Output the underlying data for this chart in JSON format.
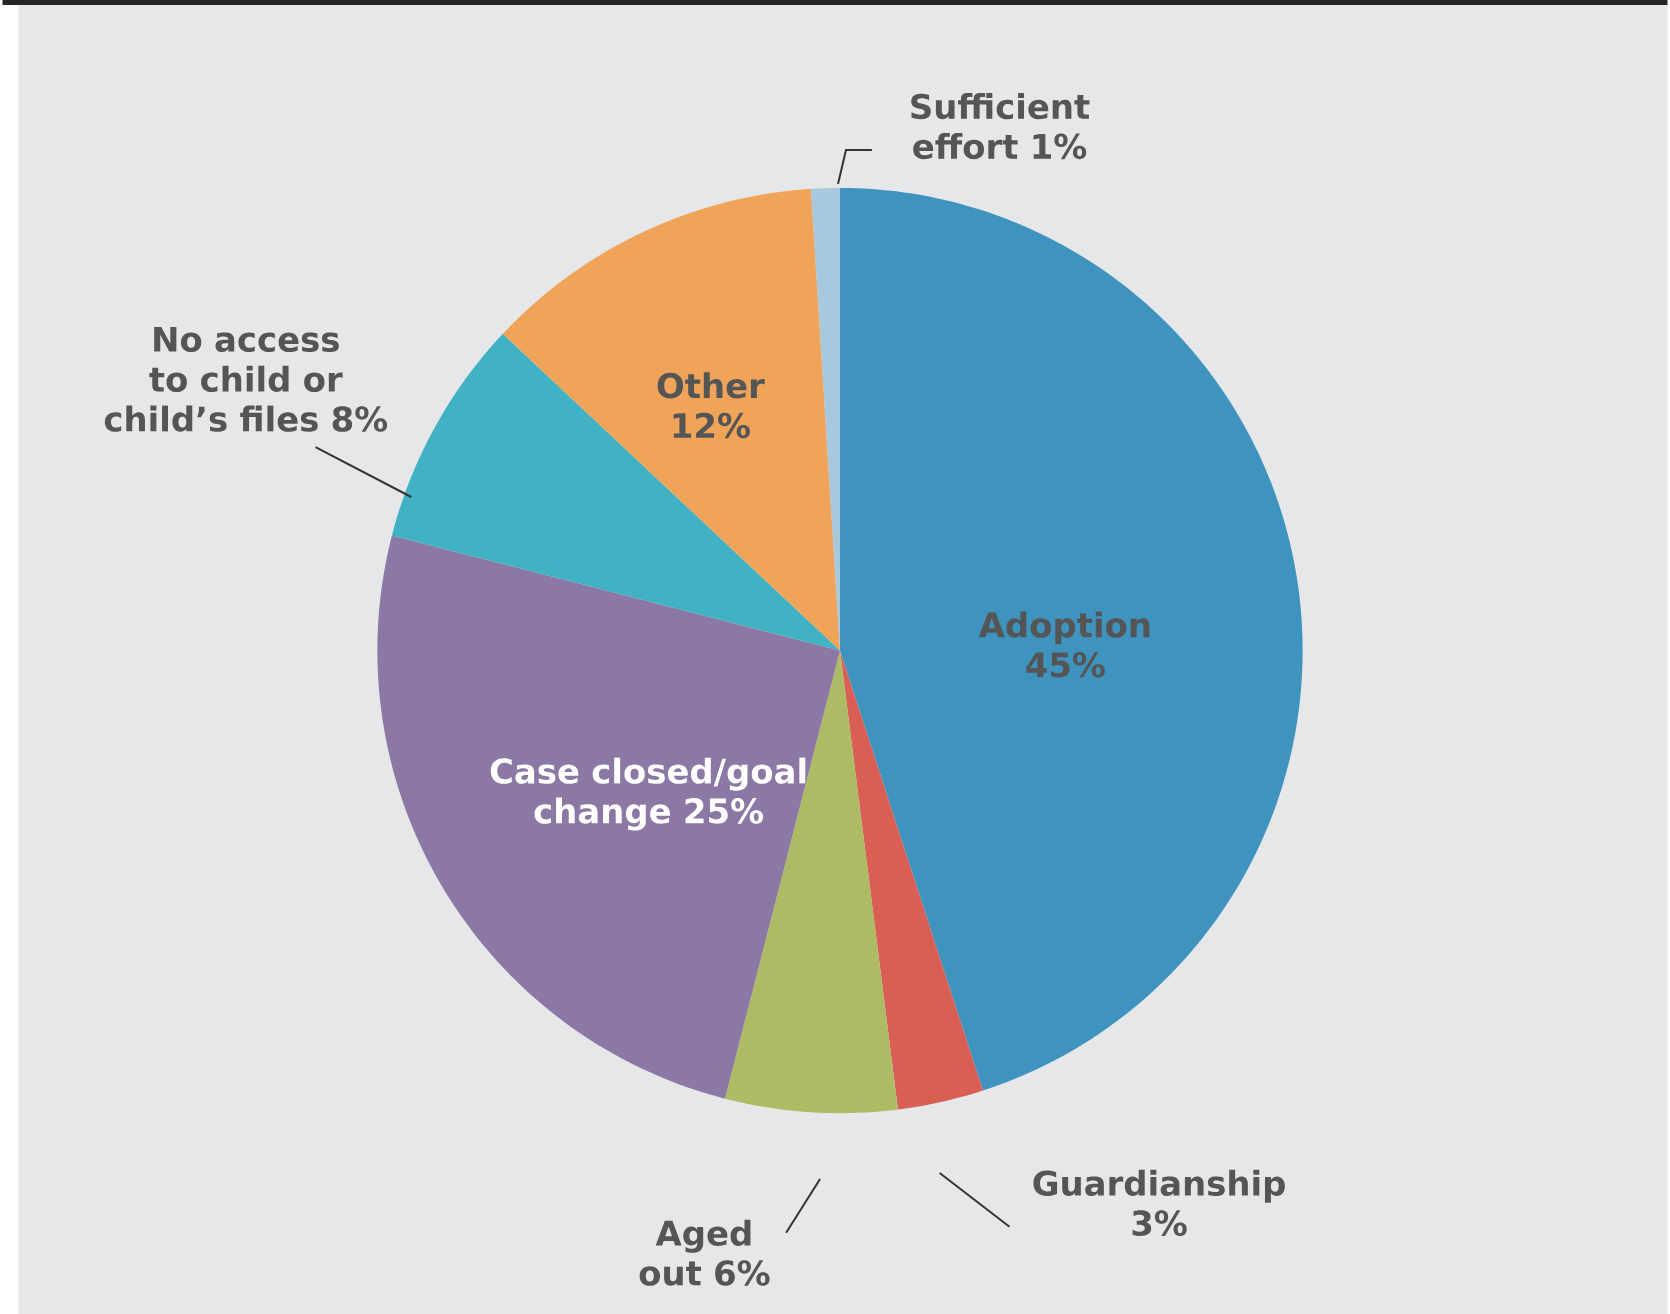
{
  "chart_data": {
    "type": "pie",
    "categories": [
      "Adoption",
      "Guardianship",
      "Aged out",
      "Case closed/goal change",
      "No access to child or child’s files",
      "Other",
      "Sufficient effort"
    ],
    "values": [
      45,
      3,
      6,
      25,
      8,
      12,
      1
    ],
    "value_labels": [
      "45%",
      "3%",
      "6%",
      "25%",
      "8%",
      "12%",
      "1%"
    ],
    "colors": [
      "#3f93bf",
      "#d95f55",
      "#adbb65",
      "#8c78a5",
      "#41b2c4",
      "#f0a45a",
      "#a8c8de"
    ]
  }
}
